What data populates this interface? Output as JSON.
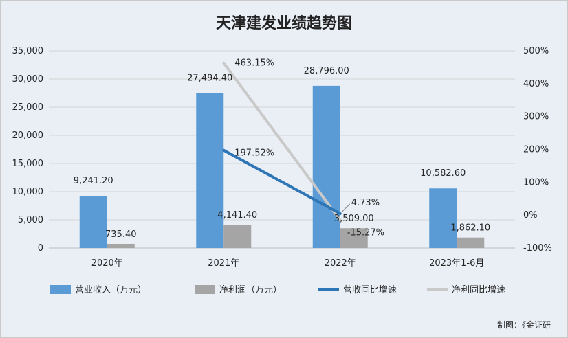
{
  "chart_data": {
    "type": "bar",
    "title": "天津建发业绩趋势图",
    "categories": [
      "2020年",
      "2021年",
      "2022年",
      "2023年1-6月"
    ],
    "bar_series": [
      {
        "name": "营业收入（万元）",
        "values": [
          9241.2,
          27494.4,
          28796.0,
          10582.6
        ],
        "labels": [
          "9,241.20",
          "27,494.40",
          "28,796.00",
          "10,582.60"
        ],
        "color": "#5b9bd5"
      },
      {
        "name": "净利润（万元）",
        "values": [
          735.4,
          4141.4,
          3509.0,
          1862.1
        ],
        "labels": [
          "735.40",
          "4,141.40",
          "3,509.00",
          "1,862.10"
        ],
        "color": "#a5a5a5"
      }
    ],
    "line_series": [
      {
        "name": "营收同比增速",
        "values": [
          null,
          197.52,
          4.73,
          null
        ],
        "labels": [
          "",
          "197.52%",
          "4.73%",
          ""
        ],
        "color": "#2e75b6"
      },
      {
        "name": "净利同比增速",
        "values": [
          null,
          463.15,
          -15.27,
          null
        ],
        "labels": [
          "",
          "463.15%",
          "-15.27%",
          ""
        ],
        "color": "#c9c9c9"
      }
    ],
    "y_left": {
      "min": 0,
      "max": 35000,
      "step": 5000,
      "ticks": [
        "0",
        "5,000",
        "10,000",
        "15,000",
        "20,000",
        "25,000",
        "30,000",
        "35,000"
      ]
    },
    "y_right": {
      "min": -100,
      "max": 500,
      "step": 100,
      "ticks": [
        "-100%",
        "0%",
        "100%",
        "200%",
        "300%",
        "400%",
        "500%"
      ]
    },
    "grid": true,
    "legend_position": "bottom"
  },
  "footer": {
    "credit": "制图：《金证研"
  }
}
